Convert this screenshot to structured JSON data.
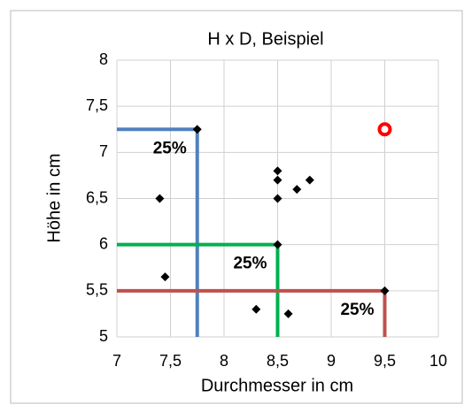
{
  "chart_data": {
    "type": "scatter",
    "title": "H x D, Beispiel",
    "x_label": "Durchmesser in cm",
    "y_label": "Höhe in cm",
    "xlim": [
      7,
      10
    ],
    "ylim": [
      5,
      8
    ],
    "xticks": [
      7,
      {
        "value": 7.5,
        "label": "7,5"
      },
      8,
      {
        "value": 8.5,
        "label": "8,5"
      },
      9,
      {
        "value": 9.5,
        "label": "9,5"
      },
      10
    ],
    "yticks": [
      5,
      {
        "value": 5.5,
        "label": "5,5"
      },
      6,
      {
        "value": 6.5,
        "label": "6,5"
      },
      7,
      {
        "value": 7.5,
        "label": "7,5"
      },
      8
    ],
    "grid": true,
    "series": [
      {
        "color": "#000000",
        "marker": "diamond",
        "x": [
          7.75,
          7.4,
          7.45,
          8.3,
          8.6,
          8.5,
          8.5,
          8.5,
          8.68,
          8.8,
          8.5,
          9.5
        ],
        "values": [
          7.25,
          6.5,
          5.65,
          5.3,
          5.25,
          6.8,
          6.7,
          6.5,
          6.6,
          6.7,
          6.0,
          5.5
        ]
      },
      {
        "color": "#ff0000",
        "marker": "circle",
        "x": [
          9.5
        ],
        "values": [
          7.25
        ]
      }
    ],
    "threshold_lines": [
      {
        "color": "#4f81bd",
        "x": 7.75,
        "y": 7.25,
        "label": "25%"
      },
      {
        "color": "#00b050",
        "x": 8.5,
        "y": 6.0,
        "label": "25%"
      },
      {
        "color": "#c0504d",
        "x": 9.5,
        "y": 5.5,
        "label": "25%"
      }
    ]
  }
}
